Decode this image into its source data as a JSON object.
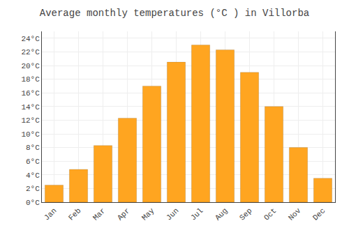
{
  "chart_data": {
    "type": "bar",
    "title": "Average monthly temperatures (°C ) in Villorba",
    "categories": [
      "Jan",
      "Feb",
      "Mar",
      "Apr",
      "May",
      "Jun",
      "Jul",
      "Aug",
      "Sep",
      "Oct",
      "Nov",
      "Dec"
    ],
    "values": [
      2.5,
      4.8,
      8.3,
      12.3,
      17.0,
      20.5,
      23.0,
      22.3,
      19.0,
      14.0,
      8.0,
      3.5
    ],
    "color": "#FFA520",
    "ylim": [
      0,
      25
    ],
    "yticks": [
      {
        "value": 0,
        "label": "0°C"
      },
      {
        "value": 2,
        "label": "2°C"
      },
      {
        "value": 4,
        "label": "4°C"
      },
      {
        "value": 6,
        "label": "6°C"
      },
      {
        "value": 8,
        "label": "8°C"
      },
      {
        "value": 10,
        "label": "10°C"
      },
      {
        "value": 12,
        "label": "12°C"
      },
      {
        "value": 14,
        "label": "14°C"
      },
      {
        "value": 16,
        "label": "16°C"
      },
      {
        "value": 18,
        "label": "18°C"
      },
      {
        "value": 20,
        "label": "20°C"
      },
      {
        "value": 22,
        "label": "22°C"
      },
      {
        "value": 24,
        "label": "24°C"
      }
    ],
    "grid": true
  }
}
